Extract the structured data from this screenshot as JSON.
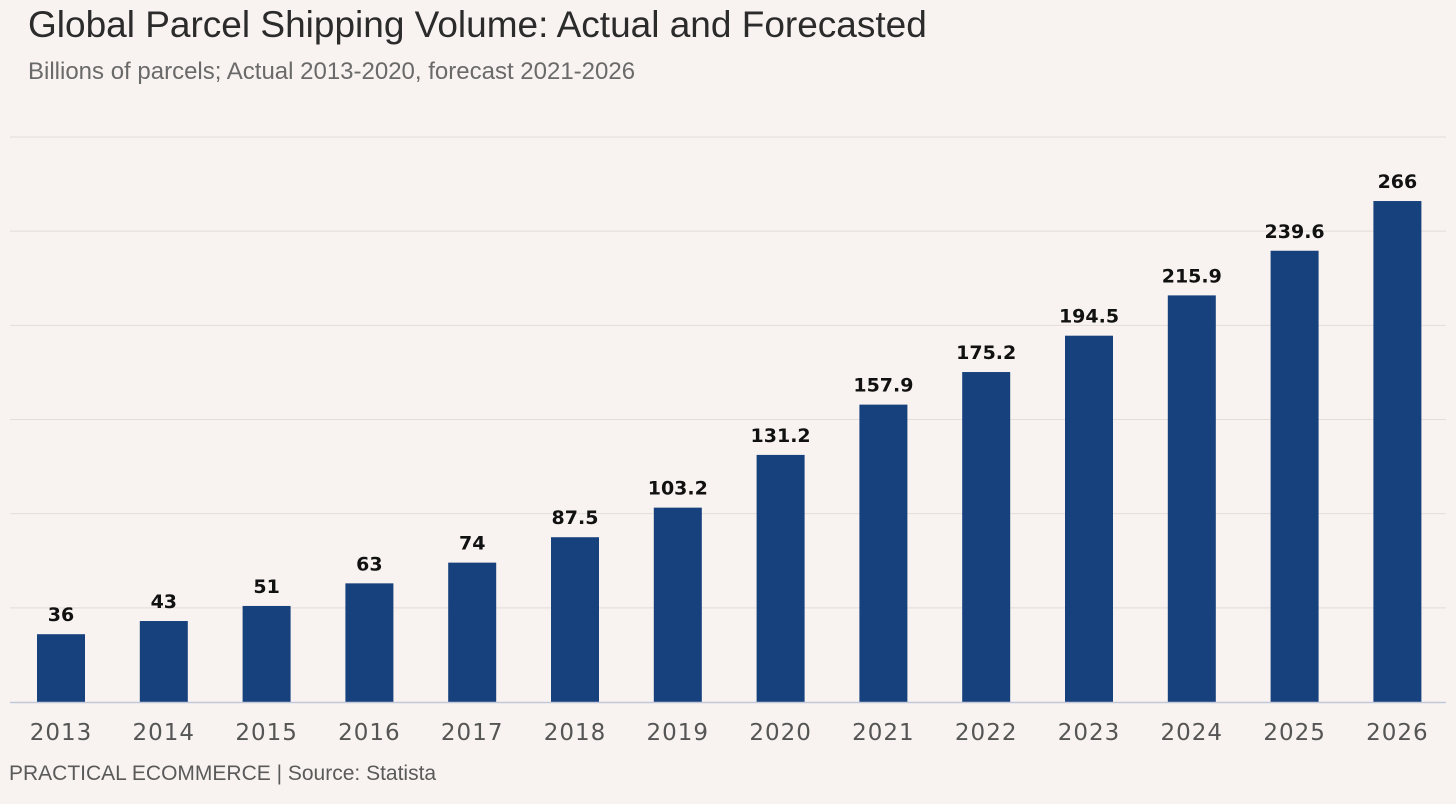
{
  "chart_data": {
    "type": "bar",
    "title": "Global Parcel Shipping Volume: Actual and Forecasted",
    "subtitle": "Billions of parcels; Actual 2013-2020, forecast 2021-2026",
    "xlabel": "",
    "ylabel": "",
    "categories": [
      "2013",
      "2014",
      "2015",
      "2016",
      "2017",
      "2018",
      "2019",
      "2020",
      "2021",
      "2022",
      "2023",
      "2024",
      "2025",
      "2026"
    ],
    "values": [
      36,
      43,
      51,
      63,
      74,
      87.5,
      103.2,
      131.2,
      157.9,
      175.2,
      194.5,
      215.9,
      239.6,
      266
    ],
    "value_labels": [
      "36",
      "43",
      "51",
      "63",
      "74",
      "87.5",
      "103.2",
      "131.2",
      "157.9",
      "175.2",
      "194.5",
      "215.9",
      "239.6",
      "266"
    ],
    "ylim": [
      0,
      300
    ],
    "grid_step": 50,
    "grid": true,
    "bar_color": "#17417c",
    "footer": "PRACTICAL ECOMMERCE | Source: Statista"
  }
}
